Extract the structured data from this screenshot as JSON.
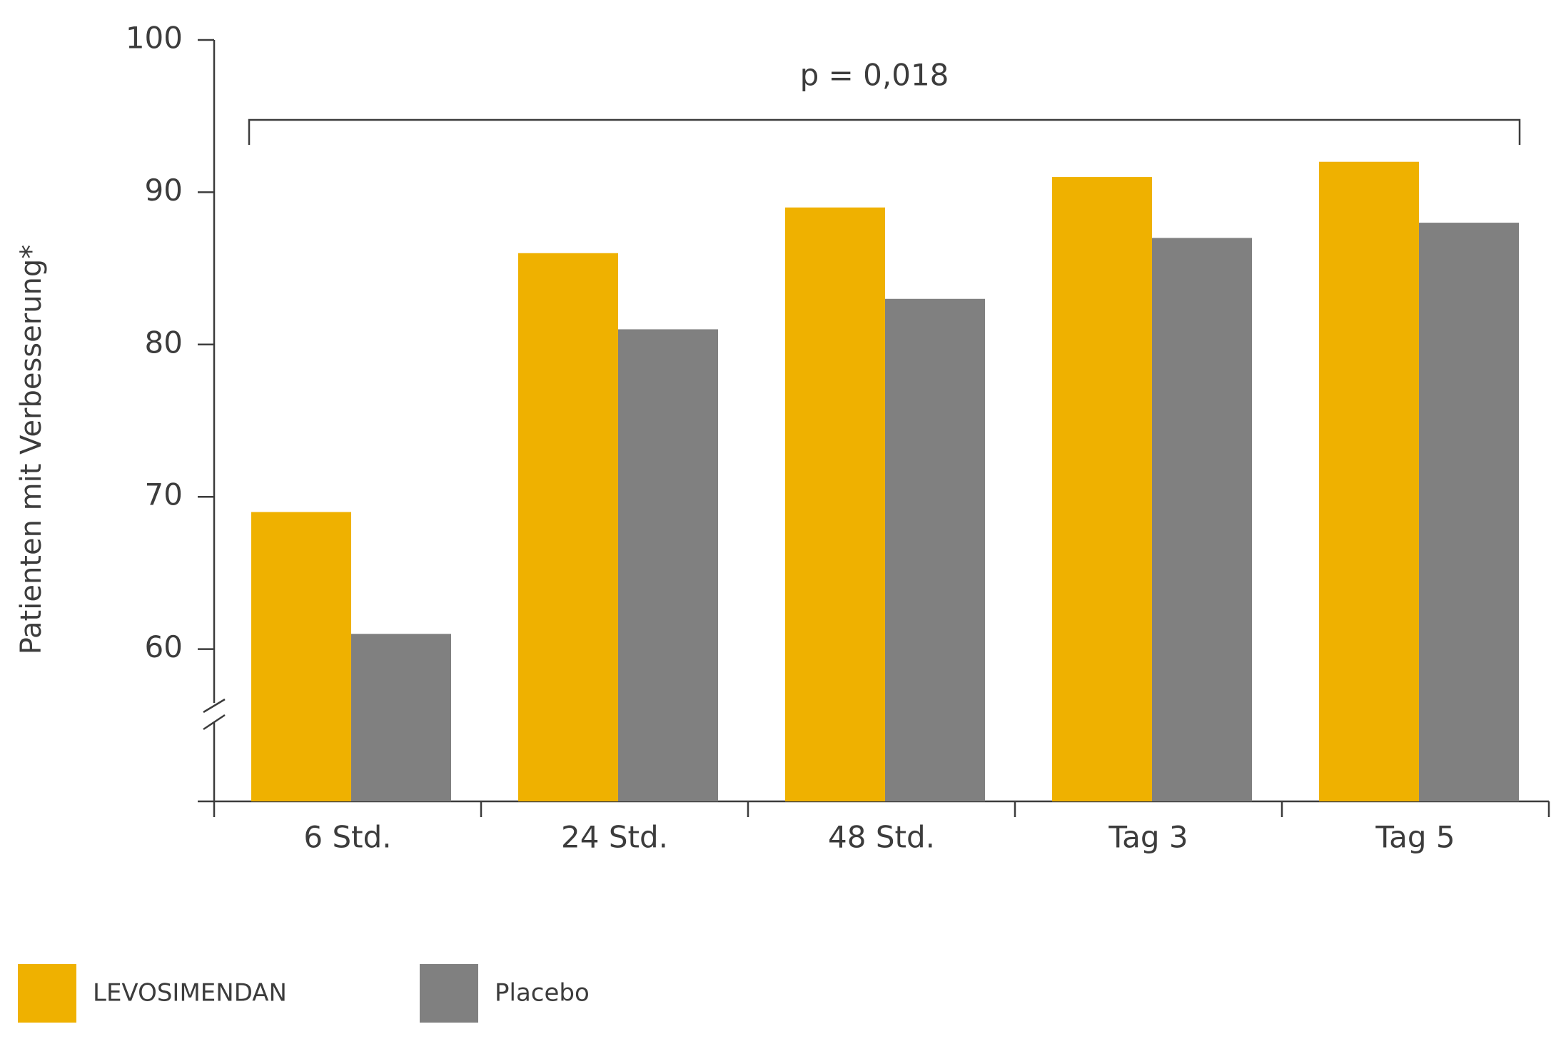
{
  "chart_data": {
    "type": "bar",
    "y_label": "Patienten mit Verbesserung*",
    "annotation": "p = 0,018",
    "categories": [
      "6 Std.",
      "24 Std.",
      "48 Std.",
      "Tag 3",
      "Tag 5"
    ],
    "series": [
      {
        "name": "LEVOSIMENDAN",
        "color": "#efb100",
        "values": [
          69,
          86,
          89,
          91,
          92
        ]
      },
      {
        "name": "Placebo",
        "color": "#808080",
        "values": [
          61,
          81,
          83,
          87,
          88
        ]
      }
    ],
    "ylim": [
      50,
      100
    ],
    "yticks": [
      60,
      70,
      80,
      90,
      100
    ],
    "grid": false
  }
}
